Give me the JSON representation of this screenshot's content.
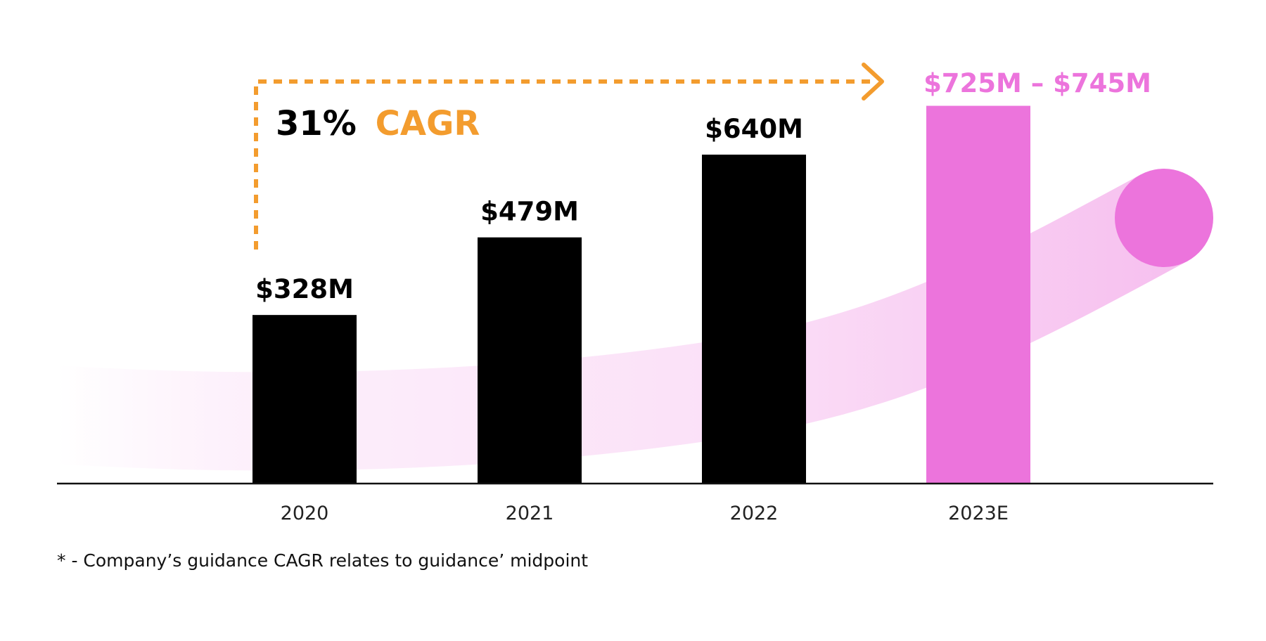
{
  "chart_data": {
    "type": "bar",
    "categories": [
      "2020",
      "2021",
      "2022",
      "2023E"
    ],
    "values": [
      328,
      479,
      640,
      735
    ],
    "data_labels": [
      "$328M",
      "$479M",
      "$640M",
      "$725M – $745M"
    ],
    "ylim": [
      0,
      800
    ],
    "grid": false,
    "annotation": {
      "value": "31%",
      "label": "CAGR"
    }
  },
  "colors": {
    "actual_bar": "#000000",
    "estimate_bar": "#ec74dc",
    "cagr_accent": "#f39c2e",
    "baseline": "#111111",
    "trend_swoosh": "#ec74dc"
  },
  "footnote": "* - Company’s guidance CAGR relates to guidance’ midpoint"
}
